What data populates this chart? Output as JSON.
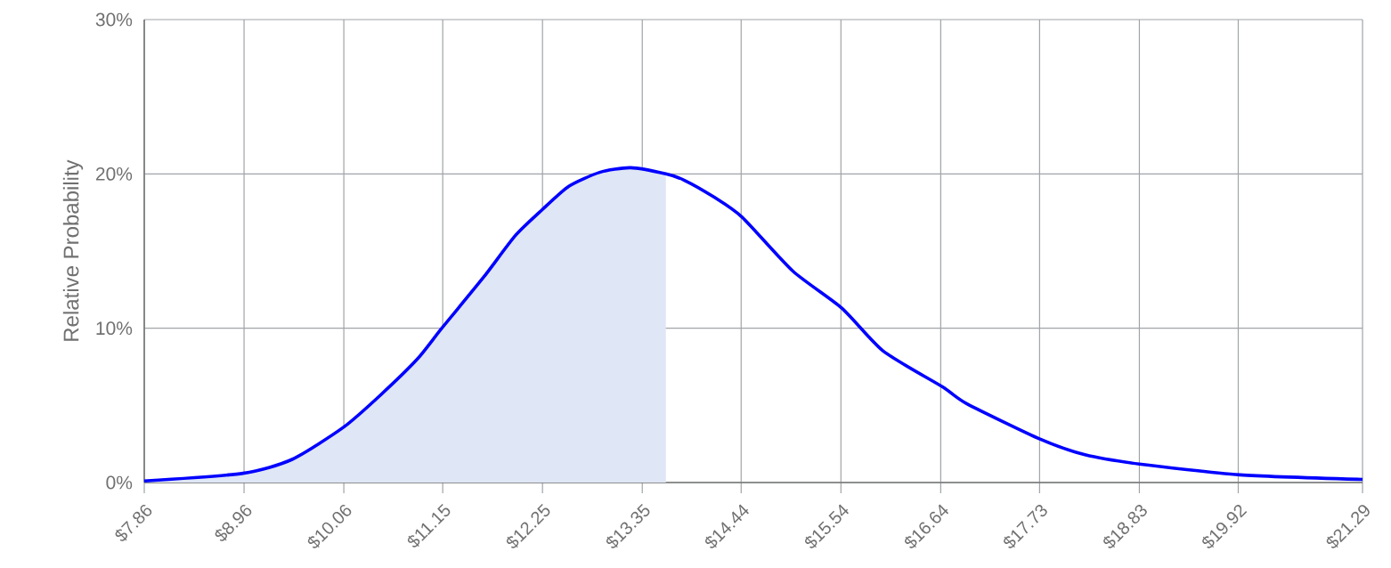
{
  "chart_data": {
    "type": "line",
    "ylabel": "Relative Probability",
    "xlim": [
      7.86,
      21.29
    ],
    "ylim": [
      0,
      30
    ],
    "xticks": [
      {
        "value": 7.86,
        "label": "$7.86"
      },
      {
        "value": 8.96,
        "label": "$8.96"
      },
      {
        "value": 10.06,
        "label": "$10.06"
      },
      {
        "value": 11.15,
        "label": "$11.15"
      },
      {
        "value": 12.25,
        "label": "$12.25"
      },
      {
        "value": 13.35,
        "label": "$13.35"
      },
      {
        "value": 14.44,
        "label": "$14.44"
      },
      {
        "value": 15.54,
        "label": "$15.54"
      },
      {
        "value": 16.64,
        "label": "$16.64"
      },
      {
        "value": 17.73,
        "label": "$17.73"
      },
      {
        "value": 18.83,
        "label": "$18.83"
      },
      {
        "value": 19.92,
        "label": "$19.92"
      },
      {
        "value": 21.29,
        "label": "$21.29"
      }
    ],
    "yticks": [
      {
        "value": 0,
        "label": "0%"
      },
      {
        "value": 10,
        "label": "10%"
      },
      {
        "value": 20,
        "label": "20%"
      },
      {
        "value": 30,
        "label": "30%"
      }
    ],
    "grid": true,
    "marker": "none",
    "line_style": "solid",
    "series": [
      {
        "type": "area",
        "color": "#dfe6f5",
        "x": [
          7.86,
          8.95,
          9.49,
          10.06,
          10.47,
          10.87,
          11.14,
          11.6,
          11.95,
          12.25,
          12.54,
          12.88,
          13.22,
          13.61
        ],
        "values": [
          0.1,
          0.6,
          1.5,
          3.6,
          5.7,
          8.0,
          10.0,
          13.3,
          16.0,
          17.7,
          19.2,
          20.1,
          20.4,
          20.0
        ]
      },
      {
        "type": "line",
        "color": "#0000ff",
        "x": [
          7.86,
          8.95,
          9.49,
          10.06,
          10.47,
          10.87,
          11.14,
          11.6,
          11.95,
          12.25,
          12.54,
          12.88,
          13.22,
          13.61,
          13.81,
          14.14,
          14.45,
          15.01,
          15.55,
          16.01,
          16.66,
          16.93,
          17.74,
          18.23,
          18.83,
          19.94,
          21.29
        ],
        "values": [
          0.1,
          0.6,
          1.5,
          3.6,
          5.7,
          8.0,
          10.0,
          13.3,
          16.0,
          17.7,
          19.2,
          20.1,
          20.4,
          20.0,
          19.6,
          18.5,
          17.2,
          13.7,
          11.3,
          8.5,
          6.2,
          5.1,
          2.8,
          1.8,
          1.2,
          0.5,
          0.2
        ]
      }
    ]
  }
}
